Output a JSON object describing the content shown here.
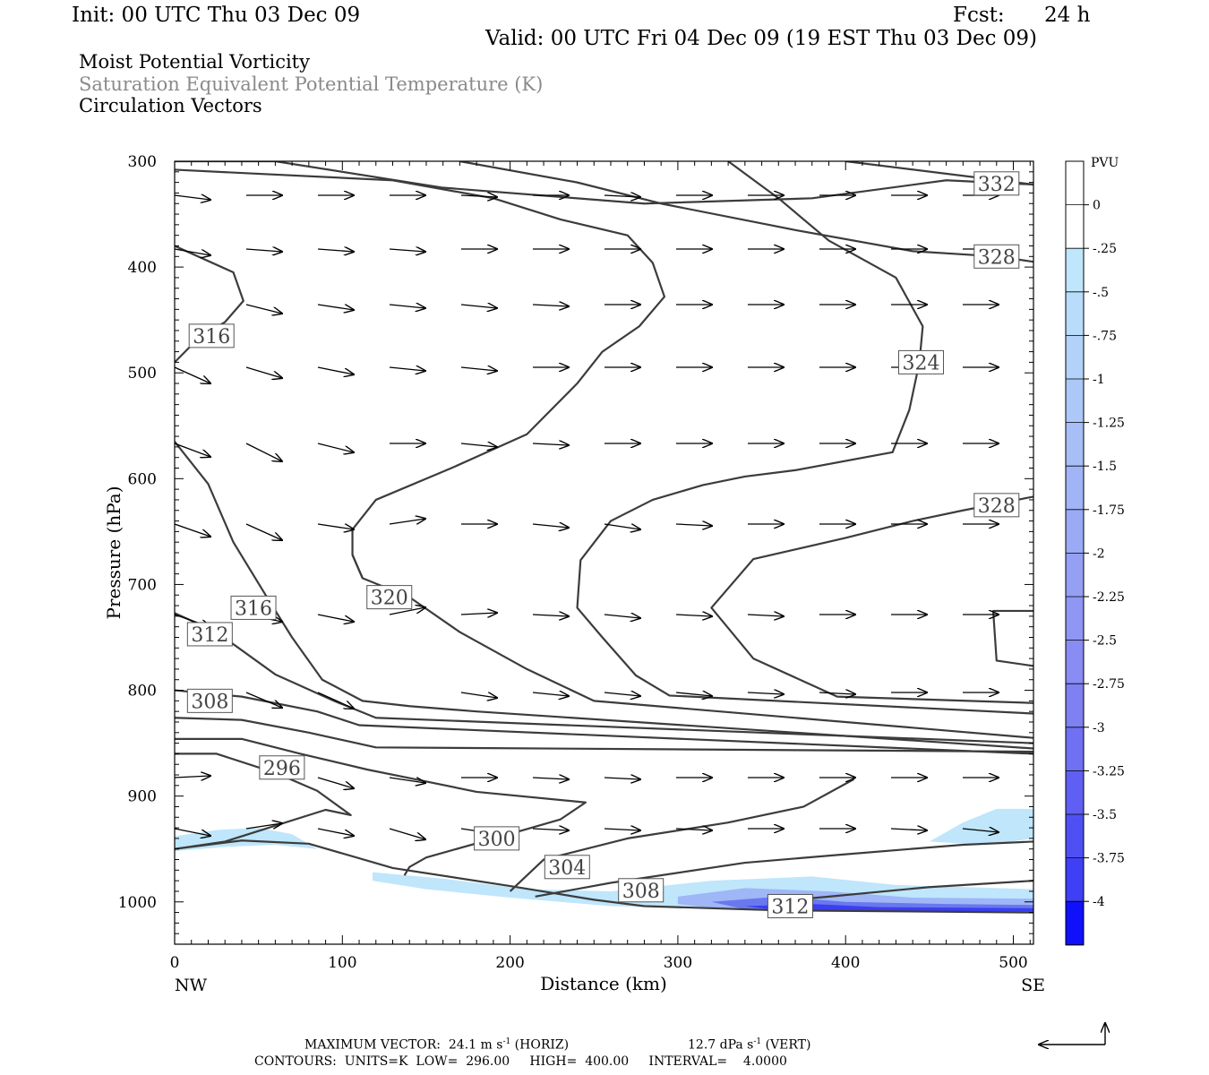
{
  "header": {
    "init": "Init: 00 UTC Thu 03 Dec 09",
    "fcst_label": "Fcst:",
    "fcst_value": "24 h",
    "valid": "Valid: 00 UTC Fri 04 Dec 09 (19 EST Thu 03 Dec 09)",
    "line1": "Moist Potential Vorticity",
    "line2": "Saturation Equivalent Potential Temperature (K)",
    "line3": "Circulation Vectors"
  },
  "footer": {
    "max_vector_label": "MAXIMUM VECTOR:",
    "horiz_value": "24.1 m s",
    "horiz_unit": "(HORIZ)",
    "vert_value": "12.7 dPa s",
    "vert_unit": "(VERT)",
    "exponent": "-1",
    "contours_line": "CONTOURS:  UNITS=K  LOW=  296.00     HIGH=  400.00     INTERVAL=    4.0000"
  },
  "colors": {
    "contour": "#3c3c3c",
    "shade_light": "#bfe6fb",
    "shade_mid": "#9fb6f7",
    "shade_dark": "#6a78ee",
    "shade_deep": "#3a3ff2",
    "frame": "#000000"
  },
  "chart_data": {
    "type": "contour",
    "xlabel": "Distance (km)",
    "ylabel": "Pressure (hPa)",
    "xlim": [
      0,
      512
    ],
    "ylim": [
      1040,
      300
    ],
    "x_ticks": [
      0,
      100,
      200,
      300,
      400,
      500
    ],
    "y_ticks": [
      300,
      400,
      500,
      600,
      700,
      800,
      900,
      1000
    ],
    "x_end_labels": [
      "NW",
      "SE"
    ],
    "contour_labels": [
      {
        "text": "332",
        "x": 490,
        "p": 321
      },
      {
        "text": "328",
        "x": 490,
        "p": 390
      },
      {
        "text": "316",
        "x": 22,
        "p": 465
      },
      {
        "text": "324",
        "x": 445,
        "p": 490
      },
      {
        "text": "328",
        "x": 490,
        "p": 625
      },
      {
        "text": "316",
        "x": 47,
        "p": 722
      },
      {
        "text": "320",
        "x": 128,
        "p": 712
      },
      {
        "text": "312",
        "x": 21,
        "p": 747
      },
      {
        "text": "308",
        "x": 21,
        "p": 810
      },
      {
        "text": "296",
        "x": 64,
        "p": 873
      },
      {
        "text": "300",
        "x": 192,
        "p": 940
      },
      {
        "text": "304",
        "x": 234,
        "p": 967
      },
      {
        "text": "308",
        "x": 278,
        "p": 989
      },
      {
        "text": "312",
        "x": 367,
        "p": 1004
      }
    ],
    "contours": [
      {
        "level": 332,
        "points": [
          [
            0,
            300
          ],
          [
            60,
            300
          ],
          [
            160,
            325
          ],
          [
            280,
            340
          ],
          [
            380,
            335
          ],
          [
            460,
            318
          ],
          [
            512,
            322
          ]
        ]
      },
      {
        "level": 332,
        "points": [
          [
            400,
            300
          ],
          [
            512,
            322
          ]
        ]
      },
      {
        "level": 328,
        "points": [
          [
            170,
            300
          ],
          [
            240,
            320
          ],
          [
            290,
            340
          ],
          [
            370,
            365
          ],
          [
            440,
            385
          ],
          [
            490,
            390
          ],
          [
            512,
            395
          ]
        ]
      },
      {
        "level": 324,
        "points": [
          [
            0,
            308
          ],
          [
            130,
            318
          ],
          [
            190,
            335
          ],
          [
            230,
            355
          ],
          [
            270,
            370
          ],
          [
            285,
            396
          ],
          [
            292,
            428
          ],
          [
            277,
            456
          ],
          [
            255,
            480
          ],
          [
            240,
            510
          ],
          [
            210,
            558
          ],
          [
            165,
            590
          ],
          [
            120,
            620
          ],
          [
            106,
            648
          ],
          [
            106,
            672
          ],
          [
            112,
            694
          ]
        ]
      },
      {
        "level": 328,
        "points": [
          [
            330,
            300
          ],
          [
            360,
            335
          ],
          [
            390,
            375
          ],
          [
            430,
            410
          ],
          [
            446,
            456
          ],
          [
            444,
            490
          ],
          [
            438,
            535
          ],
          [
            428,
            575
          ],
          [
            370,
            592
          ],
          [
            340,
            598
          ],
          [
            315,
            606
          ],
          [
            285,
            620
          ],
          [
            260,
            640
          ],
          [
            242,
            677
          ],
          [
            240,
            722
          ],
          [
            255,
            750
          ],
          [
            275,
            786
          ],
          [
            295,
            805
          ],
          [
            512,
            822
          ]
        ]
      },
      {
        "level": 332,
        "points": [
          [
            512,
            617
          ],
          [
            470,
            630
          ],
          [
            440,
            640
          ],
          [
            400,
            656
          ],
          [
            345,
            676
          ],
          [
            320,
            722
          ],
          [
            345,
            770
          ],
          [
            395,
            806
          ],
          [
            512,
            812
          ]
        ]
      },
      {
        "level": 316,
        "points": [
          [
            0,
            380
          ],
          [
            35,
            405
          ],
          [
            41,
            432
          ],
          [
            30,
            452
          ],
          [
            15,
            466
          ],
          [
            0,
            490
          ]
        ]
      },
      {
        "level": 320,
        "points": [
          [
            106,
            672
          ],
          [
            112,
            694
          ],
          [
            140,
            712
          ],
          [
            170,
            745
          ],
          [
            210,
            780
          ],
          [
            250,
            810
          ],
          [
            512,
            845
          ]
        ]
      },
      {
        "level": 316,
        "points": [
          [
            0,
            565
          ],
          [
            20,
            605
          ],
          [
            35,
            660
          ],
          [
            55,
            712
          ],
          [
            70,
            750
          ],
          [
            88,
            790
          ],
          [
            112,
            810
          ],
          [
            140,
            815
          ],
          [
            180,
            820
          ],
          [
            512,
            855
          ]
        ]
      },
      {
        "level": 312,
        "points": [
          [
            0,
            727
          ],
          [
            25,
            745
          ],
          [
            60,
            785
          ],
          [
            95,
            810
          ],
          [
            120,
            826
          ],
          [
            512,
            850
          ]
        ]
      },
      {
        "level": 312,
        "points": [
          [
            512,
            725
          ],
          [
            488,
            725
          ],
          [
            490,
            772
          ],
          [
            512,
            777
          ]
        ]
      },
      {
        "level": 308,
        "points": [
          [
            0,
            800
          ],
          [
            40,
            806
          ],
          [
            85,
            820
          ],
          [
            110,
            833
          ],
          [
            512,
            860
          ]
        ]
      },
      {
        "level": 304,
        "points": [
          [
            0,
            826
          ],
          [
            40,
            828
          ],
          [
            80,
            840
          ],
          [
            120,
            854
          ],
          [
            512,
            858
          ]
        ]
      },
      {
        "level": 300,
        "points": [
          [
            0,
            846
          ],
          [
            40,
            846
          ],
          [
            75,
            860
          ],
          [
            115,
            875
          ],
          [
            140,
            883
          ],
          [
            180,
            896
          ],
          [
            245,
            906
          ],
          [
            230,
            922
          ],
          [
            195,
            938
          ],
          [
            150,
            958
          ],
          [
            140,
            967
          ],
          [
            137,
            975
          ]
        ]
      },
      {
        "level": 300,
        "points": [
          [
            0,
            860
          ],
          [
            25,
            860
          ],
          [
            60,
            878
          ],
          [
            85,
            895
          ],
          [
            105,
            918
          ],
          [
            90,
            913
          ],
          [
            60,
            928
          ],
          [
            30,
            943
          ],
          [
            0,
            950
          ]
        ]
      },
      {
        "level": 304,
        "points": [
          [
            405,
            884
          ],
          [
            375,
            910
          ],
          [
            330,
            925
          ],
          [
            270,
            940
          ],
          [
            220,
            960
          ],
          [
            200,
            990
          ]
        ]
      },
      {
        "level": 308,
        "points": [
          [
            512,
            943
          ],
          [
            470,
            946
          ],
          [
            400,
            955
          ],
          [
            340,
            963
          ],
          [
            260,
            982
          ],
          [
            215,
            995
          ]
        ]
      },
      {
        "level": 312,
        "points": [
          [
            512,
            980
          ],
          [
            450,
            986
          ],
          [
            390,
            995
          ],
          [
            355,
            1000
          ]
        ]
      },
      {
        "level": 296,
        "points": [
          [
            0,
            950
          ],
          [
            40,
            942
          ],
          [
            80,
            945
          ],
          [
            130,
            968
          ],
          [
            200,
            985
          ],
          [
            250,
            998
          ],
          [
            280,
            1004
          ],
          [
            360,
            1008
          ],
          [
            512,
            1010
          ]
        ]
      }
    ],
    "shading": [
      {
        "level": -0.25,
        "description": "low-level negative MPV near NW surface and SE boundary layer"
      },
      {
        "level": -0.5,
        "description": "near-surface band 330-420 km"
      },
      {
        "level": -1.0,
        "description": "surface layer 320-512 km"
      }
    ],
    "vectors": {
      "rows_p": [
        337,
        388,
        455,
        510,
        578,
        672,
        755,
        830,
        870,
        933
      ],
      "note": "circulation vectors plotted on regular grid, mostly pointing toward SE"
    },
    "colorbar": {
      "title": "PVU",
      "labels": [
        "0",
        "-.25",
        "-.5",
        "-.75",
        "-1",
        "-1.25",
        "-1.5",
        "-1.75",
        "-2",
        "-2.25",
        "-2.5",
        "-2.75",
        "-3",
        "-3.25",
        "-3.5",
        "-3.75",
        "-4"
      ],
      "colors": [
        "#ffffff",
        "#ffffff",
        "#bfe6fb",
        "#b9dcfa",
        "#b3d2f9",
        "#adc8f8",
        "#a7bef7",
        "#a1b4f6",
        "#9baaf5",
        "#95a0f4",
        "#8f96f3",
        "#898cf2",
        "#7f80f1",
        "#6f70f2",
        "#5f60f3",
        "#4f50f4",
        "#3f40f5",
        "#1010fa"
      ]
    }
  }
}
